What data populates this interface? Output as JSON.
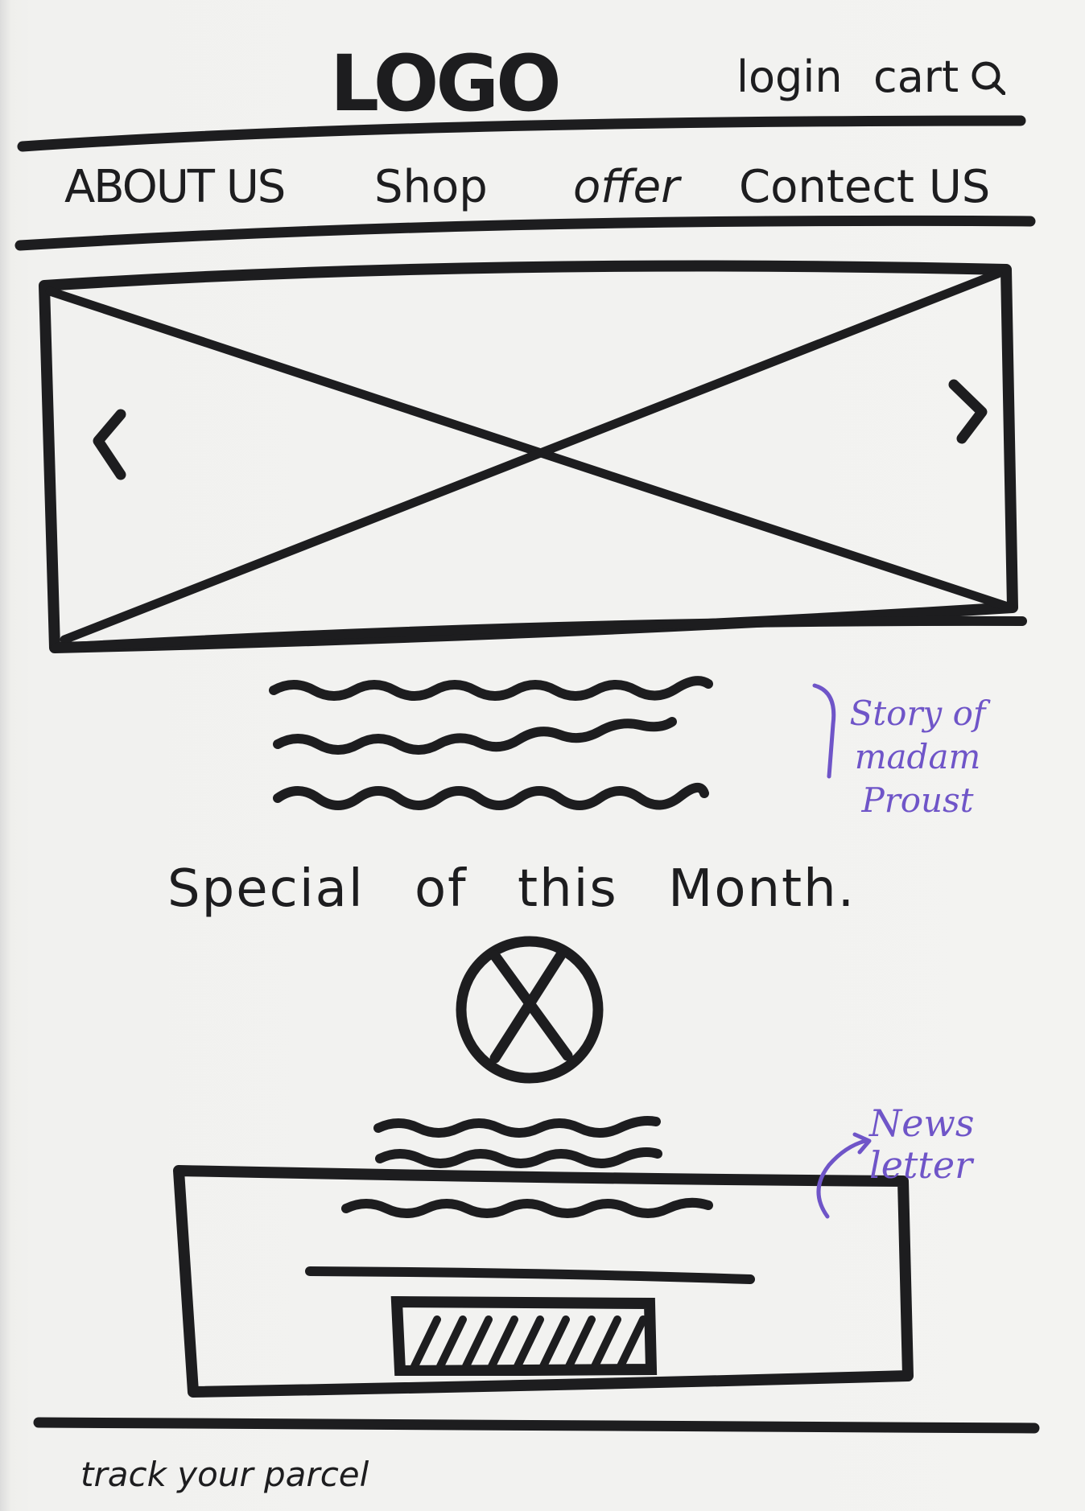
{
  "header": {
    "logo": "LOGO",
    "login_label": "login",
    "cart_label": "cart",
    "search_icon": "search-icon"
  },
  "nav": {
    "items": [
      {
        "label": "ABOUT US"
      },
      {
        "label": "Shop"
      },
      {
        "label": "offer"
      },
      {
        "label": "Contect US"
      }
    ]
  },
  "hero": {
    "image_placeholder": "image-placeholder-icon",
    "prev_icon": "chevron-left-icon",
    "next_icon": "chevron-right-icon"
  },
  "story": {
    "annotation": "Story of madam Proust"
  },
  "special": {
    "heading": "Special of this Month.",
    "image_placeholder": "image-placeholder-icon"
  },
  "newsletter": {
    "annotation": "News letter"
  },
  "footer": {
    "link": "track your parcel"
  },
  "colors": {
    "ink": "#1d1d1f",
    "annotation": "#6f55c8",
    "paper": "#f2f2f0"
  }
}
